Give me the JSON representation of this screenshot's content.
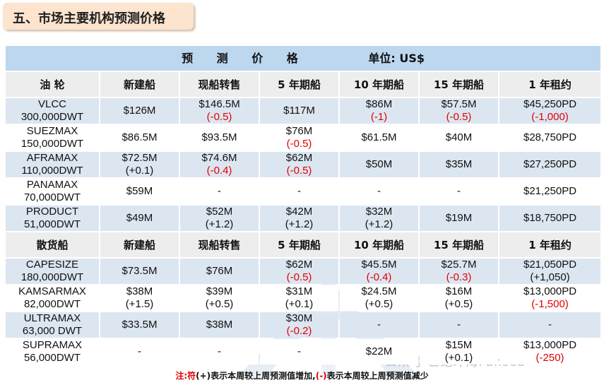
{
  "title": "五、市场主要机构预测价格",
  "table": {
    "header": "预 测 价 格",
    "unit": "单位: US$",
    "tanker_header": [
      "油 轮",
      "新建船",
      "现船转售",
      "5 年期船",
      "10 年期船",
      "15 年期船",
      "1 年租约"
    ],
    "tanker_rows": [
      {
        "name": [
          "VLCC",
          "300,000DWT"
        ],
        "cells": [
          {
            "v": "$126M",
            "c": "",
            "neg": false
          },
          {
            "v": "$146.5M",
            "c": "(-0.5)",
            "neg": true
          },
          {
            "v": "$117M",
            "c": "",
            "neg": false
          },
          {
            "v": "$86M",
            "c": "(-1)",
            "neg": true
          },
          {
            "v": "$57.5M",
            "c": "(-0.5)",
            "neg": true
          },
          {
            "v": "$45,250PD",
            "c": "(-1,000)",
            "neg": true
          }
        ]
      },
      {
        "name": [
          "SUEZMAX",
          "150,000DWT"
        ],
        "cells": [
          {
            "v": "$86.5M",
            "c": "",
            "neg": false
          },
          {
            "v": "$93.5M",
            "c": "",
            "neg": false
          },
          {
            "v": "$76M",
            "c": "(-0.5)",
            "neg": true
          },
          {
            "v": "$61.5M",
            "c": "",
            "neg": false
          },
          {
            "v": "$40M",
            "c": "",
            "neg": false
          },
          {
            "v": "$28,750PD",
            "c": "",
            "neg": false
          }
        ]
      },
      {
        "name": [
          "AFRAMAX",
          "110,000DWT"
        ],
        "cells": [
          {
            "v": "$72.5M",
            "c": "(+0.1)",
            "neg": false
          },
          {
            "v": "$74.6M",
            "c": "(-0.4)",
            "neg": true
          },
          {
            "v": "$62M",
            "c": "(-0.5)",
            "neg": true
          },
          {
            "v": "$50M",
            "c": "",
            "neg": false
          },
          {
            "v": "$35M",
            "c": "",
            "neg": false
          },
          {
            "v": "$27,250PD",
            "c": "",
            "neg": false
          }
        ]
      },
      {
        "name": [
          "PANAMAX",
          "70,000DWT"
        ],
        "cells": [
          {
            "v": "$59M",
            "c": "",
            "neg": false
          },
          {
            "v": "-",
            "c": "",
            "neg": false
          },
          {
            "v": "-",
            "c": "",
            "neg": false
          },
          {
            "v": "-",
            "c": "",
            "neg": false
          },
          {
            "v": "-",
            "c": "",
            "neg": false
          },
          {
            "v": "$21,250PD",
            "c": "",
            "neg": false
          }
        ]
      },
      {
        "name": [
          "PRODUCT",
          "51,000DWT"
        ],
        "cells": [
          {
            "v": "$49M",
            "c": "",
            "neg": false
          },
          {
            "v": "$52M",
            "c": "(+1.2)",
            "neg": false
          },
          {
            "v": "$42M",
            "c": "(+1.2)",
            "neg": false
          },
          {
            "v": "$32M",
            "c": "(+1.2)",
            "neg": false
          },
          {
            "v": "$19M",
            "c": "",
            "neg": false
          },
          {
            "v": "$18,750PD",
            "c": "",
            "neg": false
          }
        ]
      }
    ],
    "bulk_header": [
      "散货船",
      "新建船",
      "现船转售",
      "5 年期船",
      "10 年期船",
      "15 年期船",
      "1 年租约"
    ],
    "bulk_rows": [
      {
        "name": [
          "CAPESIZE",
          "180,000DWT"
        ],
        "cells": [
          {
            "v": "$73.5M",
            "c": "",
            "neg": false
          },
          {
            "v": "$76M",
            "c": "",
            "neg": false
          },
          {
            "v": "$62M",
            "c": "(-0.5)",
            "neg": true
          },
          {
            "v": "$45.5M",
            "c": "(-0.4)",
            "neg": true
          },
          {
            "v": "$25.7M",
            "c": "(-0.3)",
            "neg": true
          },
          {
            "v": "$21,050PD",
            "c": "(+1,050)",
            "neg": false
          }
        ]
      },
      {
        "name": [
          "KAMSARMAX",
          "82,000DWT"
        ],
        "cells": [
          {
            "v": "$38M",
            "c": "(+1.5)",
            "neg": false
          },
          {
            "v": "$39M",
            "c": "(+0.5)",
            "neg": false
          },
          {
            "v": "$31M",
            "c": "(+0.1)",
            "neg": false
          },
          {
            "v": "$24.5M",
            "c": "(+0.5)",
            "neg": false
          },
          {
            "v": "$16M",
            "c": "(+0.5)",
            "neg": false
          },
          {
            "v": "$13,000PD",
            "c": "(-1,500)",
            "neg": true
          }
        ]
      },
      {
        "name": [
          "ULTRAMAX",
          "63,000 DWT"
        ],
        "cells": [
          {
            "v": "$33.5M",
            "c": "",
            "neg": false
          },
          {
            "v": "$38M",
            "c": "",
            "neg": false
          },
          {
            "v": "$30M",
            "c": "(-0.2)",
            "neg": true
          },
          {
            "v": "-",
            "c": "",
            "neg": false
          },
          {
            "v": "-",
            "c": "",
            "neg": false
          },
          {
            "v": "-",
            "c": "",
            "neg": false
          }
        ]
      },
      {
        "name": [
          "SUPRAMAX",
          "56,000DWT"
        ],
        "cells": [
          {
            "v": "-",
            "c": "",
            "neg": false
          },
          {
            "v": "-",
            "c": "",
            "neg": false
          },
          {
            "v": "-",
            "c": "",
            "neg": false
          },
          {
            "v": "$22M",
            "c": "",
            "neg": false
          },
          {
            "v": "$15M",
            "c": "(+0.1)",
            "neg": false
          },
          {
            "v": "$13,000PD",
            "c": "(-250)",
            "neg": true
          }
        ]
      }
    ]
  },
  "note": {
    "prefix": "注:符",
    "plus": "(+)",
    "mid": "表示本周较上周预测值增加,",
    "minus": "(-)",
    "suffix": "表示本周较上周预测值减少"
  },
  "watermark": "公众号·世纪环海Pansea"
}
